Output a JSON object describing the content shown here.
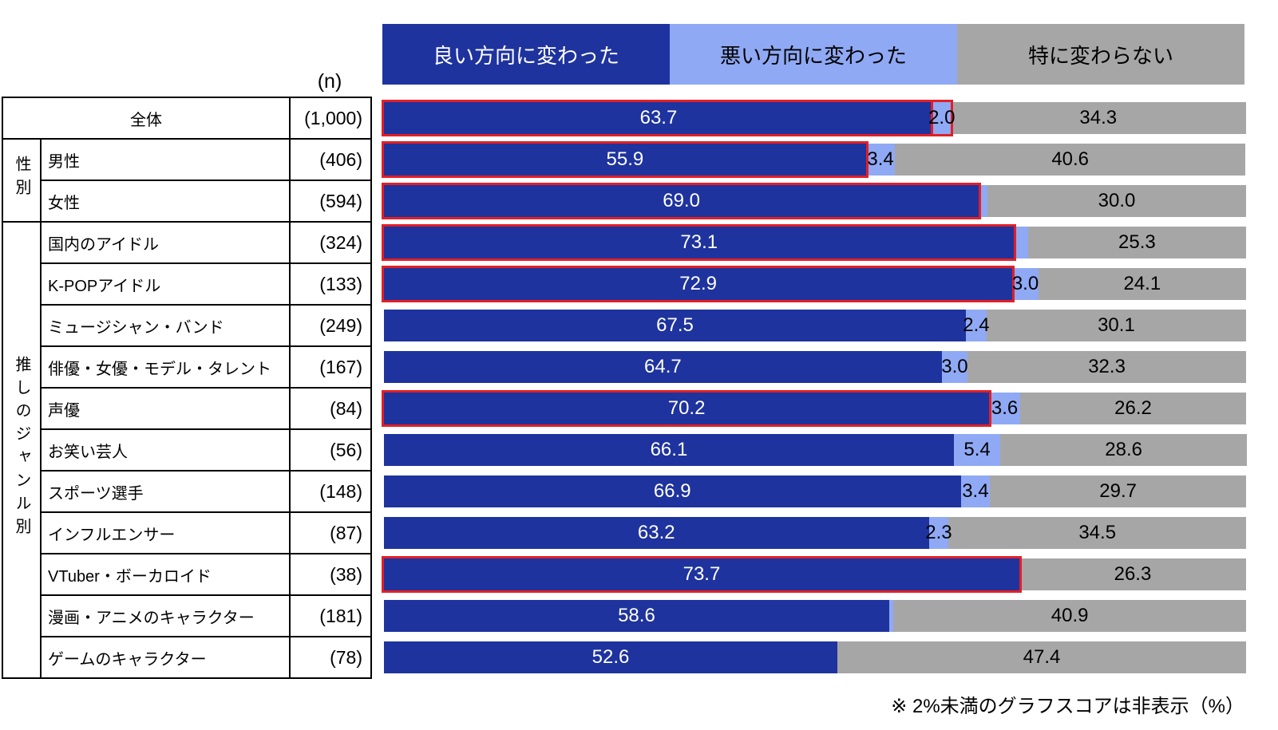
{
  "n_header": "(n)",
  "footnote": "※ 2%未満のグラフスコアは非表示（%）",
  "colors": {
    "positive": "#1e339e",
    "negative": "#8fa9f5",
    "neutral": "#a6a6a6",
    "highlight": "#e21f26",
    "border": "#000000"
  },
  "legend": [
    {
      "label": "良い方向に変わった",
      "color": "#1e339e",
      "text_color": "#ffffff"
    },
    {
      "label": "悪い方向に変わった",
      "color": "#8fa9f5",
      "text_color": "#000000"
    },
    {
      "label": "特に変わらない",
      "color": "#a6a6a6",
      "text_color": "#000000"
    }
  ],
  "rows": [
    {
      "full_width": true,
      "label": "全体",
      "n": "(1,000)",
      "good": 63.7,
      "bad": 2.0,
      "none": 34.3,
      "good_label": "63.7",
      "bad_label": "2.0",
      "none_label": "34.3",
      "hl_good": true,
      "hl_bad": true
    },
    {
      "group": {
        "label": "性別",
        "span": 2
      },
      "label": "男性",
      "n": "(406)",
      "good": 55.9,
      "bad": 3.4,
      "none": 40.6,
      "good_label": "55.9",
      "bad_label": "3.4",
      "none_label": "40.6",
      "hl_good": true
    },
    {
      "label": "女性",
      "n": "(594)",
      "good": 69.0,
      "bad": 1.0,
      "none": 30.0,
      "good_label": "69.0",
      "bad_label": "",
      "none_label": "30.0",
      "hl_good": true
    },
    {
      "group": {
        "label": "推しのジャンル別",
        "span": 11
      },
      "label": "国内のアイドル",
      "n": "(324)",
      "good": 73.1,
      "bad": 1.6,
      "none": 25.3,
      "good_label": "73.1",
      "bad_label": "",
      "none_label": "25.3",
      "hl_good": true
    },
    {
      "label": "K-POPアイドル",
      "n": "(133)",
      "good": 72.9,
      "bad": 3.0,
      "none": 24.1,
      "good_label": "72.9",
      "bad_label": "3.0",
      "none_label": "24.1",
      "hl_good": true
    },
    {
      "label": "ミュージシャン・バンド",
      "n": "(249)",
      "good": 67.5,
      "bad": 2.4,
      "none": 30.1,
      "good_label": "67.5",
      "bad_label": "2.4",
      "none_label": "30.1"
    },
    {
      "label": "俳優・女優・モデル・タレント",
      "n": "(167)",
      "good": 64.7,
      "bad": 3.0,
      "none": 32.3,
      "good_label": "64.7",
      "bad_label": "3.0",
      "none_label": "32.3"
    },
    {
      "label": "声優",
      "n": "(84)",
      "good": 70.2,
      "bad": 3.6,
      "none": 26.2,
      "good_label": "70.2",
      "bad_label": "3.6",
      "none_label": "26.2",
      "hl_good": true
    },
    {
      "label": "お笑い芸人",
      "n": "(56)",
      "good": 66.1,
      "bad": 5.4,
      "none": 28.6,
      "good_label": "66.1",
      "bad_label": "5.4",
      "none_label": "28.6"
    },
    {
      "label": "スポーツ選手",
      "n": "(148)",
      "good": 66.9,
      "bad": 3.4,
      "none": 29.7,
      "good_label": "66.9",
      "bad_label": "3.4",
      "none_label": "29.7"
    },
    {
      "label": "インフルエンサー",
      "n": "(87)",
      "good": 63.2,
      "bad": 2.3,
      "none": 34.5,
      "good_label": "63.2",
      "bad_label": "2.3",
      "none_label": "34.5"
    },
    {
      "label": "VTuber・ボーカロイド",
      "n": "(38)",
      "good": 73.7,
      "bad": 0,
      "none": 26.3,
      "good_label": "73.7",
      "bad_label": "",
      "none_label": "26.3",
      "hl_good": true
    },
    {
      "label": "漫画・アニメのキャラクター",
      "n": "(181)",
      "good": 58.6,
      "bad": 0.5,
      "none": 40.9,
      "good_label": "58.6",
      "bad_label": "",
      "none_label": "40.9"
    },
    {
      "label": "ゲームのキャラクター",
      "n": "(78)",
      "good": 52.6,
      "bad": 0,
      "none": 47.4,
      "good_label": "52.6",
      "bad_label": "",
      "none_label": "47.4"
    }
  ],
  "chart_data": {
    "type": "bar",
    "orientation": "horizontal",
    "stacked": true,
    "unit": "%",
    "xlim": [
      0,
      100
    ],
    "legend_position": "top",
    "categories": [
      "全体",
      "男性",
      "女性",
      "国内のアイドル",
      "K-POPアイドル",
      "ミュージシャン・バンド",
      "俳優・女優・モデル・タレント",
      "声優",
      "お笑い芸人",
      "スポーツ選手",
      "インフルエンサー",
      "VTuber・ボーカロイド",
      "漫画・アニメのキャラクター",
      "ゲームのキャラクター"
    ],
    "group_labels": [
      {
        "label": "性別",
        "categories": [
          "男性",
          "女性"
        ]
      },
      {
        "label": "推しのジャンル別",
        "categories": [
          "国内のアイドル",
          "K-POPアイドル",
          "ミュージシャン・バンド",
          "俳優・女優・モデル・タレント",
          "声優",
          "お笑い芸人",
          "スポーツ選手",
          "インフルエンサー",
          "VTuber・ボーカロイド",
          "漫画・アニメのキャラクター",
          "ゲームのキャラクター"
        ]
      }
    ],
    "n": [
      1000,
      406,
      594,
      324,
      133,
      249,
      167,
      84,
      56,
      148,
      87,
      38,
      181,
      78
    ],
    "series": [
      {
        "name": "良い方向に変わった",
        "color": "#1e339e",
        "values": [
          63.7,
          55.9,
          69.0,
          73.1,
          72.9,
          67.5,
          64.7,
          70.2,
          66.1,
          66.9,
          63.2,
          73.7,
          58.6,
          52.6
        ]
      },
      {
        "name": "悪い方向に変わった",
        "color": "#8fa9f5",
        "values": [
          2.0,
          3.4,
          1.0,
          1.6,
          3.0,
          2.4,
          3.0,
          3.6,
          5.4,
          3.4,
          2.3,
          0,
          0.5,
          0
        ]
      },
      {
        "name": "特に変わらない",
        "color": "#a6a6a6",
        "values": [
          34.3,
          40.6,
          30.0,
          25.3,
          24.1,
          30.1,
          32.3,
          26.2,
          28.6,
          29.7,
          34.5,
          26.3,
          40.9,
          47.4
        ]
      }
    ],
    "highlighted_categories": [
      "全体",
      "男性",
      "女性",
      "国内のアイドル",
      "K-POPアイドル",
      "声優",
      "VTuber・ボーカロイド"
    ],
    "note": "※ 2%未満のグラフスコアは非表示（%）"
  }
}
